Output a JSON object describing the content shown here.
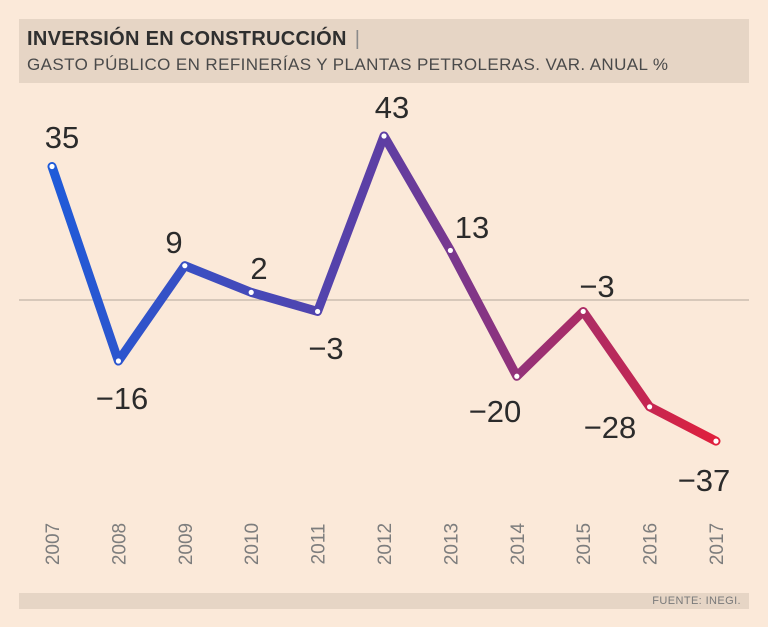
{
  "header": {
    "title": "INVERSIÓN EN CONSTRUCCIÓN",
    "separator": "|",
    "subtitle": "GASTO PÚBLICO EN REFINERÍAS Y PLANTAS PETROLERAS. VAR. ANUAL %"
  },
  "footer": {
    "source": "FUENTE: INEGI."
  },
  "colors": {
    "background": "#fbe9d9",
    "band": "#e6d5c5",
    "zero_line": "#b3a79c",
    "text": "#2b2b2b",
    "year_text": "#7d7d7d",
    "line_start": "#1f5bd9",
    "line_mid": "#5e3ea3",
    "line_end": "#e0203c"
  },
  "chart_data": {
    "type": "line",
    "title": "INVERSIÓN EN CONSTRUCCIÓN",
    "subtitle": "GASTO PÚBLICO EN REFINERÍAS Y PLANTAS PETROLERAS. VAR. ANUAL %",
    "xlabel": "",
    "ylabel": "",
    "categories": [
      "2007",
      "2008",
      "2009",
      "2010",
      "2011",
      "2012",
      "2013",
      "2014",
      "2015",
      "2016",
      "2017"
    ],
    "series": [
      {
        "name": "Var. anual %",
        "values": [
          35,
          -16,
          9,
          2,
          -3,
          43,
          13,
          -20,
          -3,
          -28,
          -37
        ],
        "labels": [
          "35",
          "−16",
          "9",
          "2",
          "−3",
          "43",
          "13",
          "−20",
          "−3",
          "−28",
          "−37"
        ]
      }
    ],
    "baseline": 0,
    "ylim": [
      -40,
      45
    ],
    "grid": false,
    "legend": "none",
    "source": "FUENTE: INEGI."
  }
}
